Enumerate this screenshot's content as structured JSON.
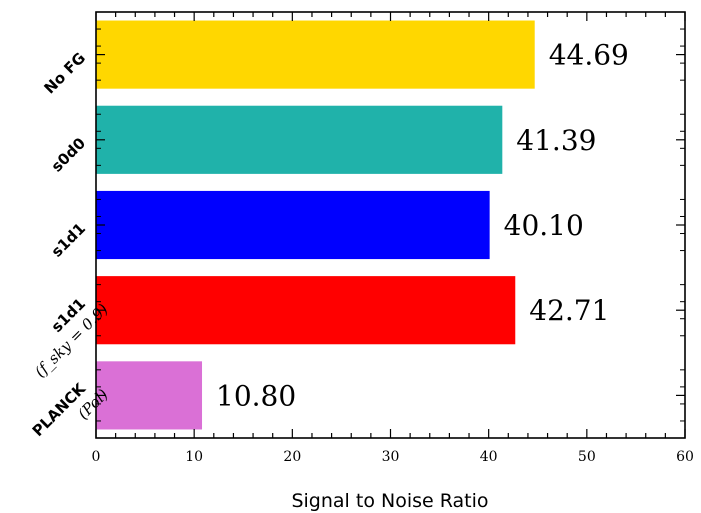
{
  "chart_data": {
    "type": "bar",
    "orientation": "horizontal",
    "categories": [
      {
        "label": "No FG",
        "sublabel": ""
      },
      {
        "label": "s0d0",
        "sublabel": ""
      },
      {
        "label": "s1d1",
        "sublabel": ""
      },
      {
        "label": "s1d1",
        "sublabel": "(f_sky = 0.9)"
      },
      {
        "label": "PLANCK",
        "sublabel": "(Pol)"
      }
    ],
    "values": [
      44.69,
      41.39,
      40.1,
      42.71,
      10.8
    ],
    "value_labels": [
      "44.69",
      "41.39",
      "40.10",
      "42.71",
      "10.80"
    ],
    "colors": [
      "#FFD700",
      "#20B2AA",
      "#0000FF",
      "#FF0000",
      "#DA70D6"
    ],
    "xlabel": "Signal to Noise Ratio",
    "xlim": [
      0,
      60
    ],
    "xticks": [
      "0",
      "10",
      "20",
      "30",
      "40",
      "50",
      "60"
    ],
    "grid": false
  }
}
